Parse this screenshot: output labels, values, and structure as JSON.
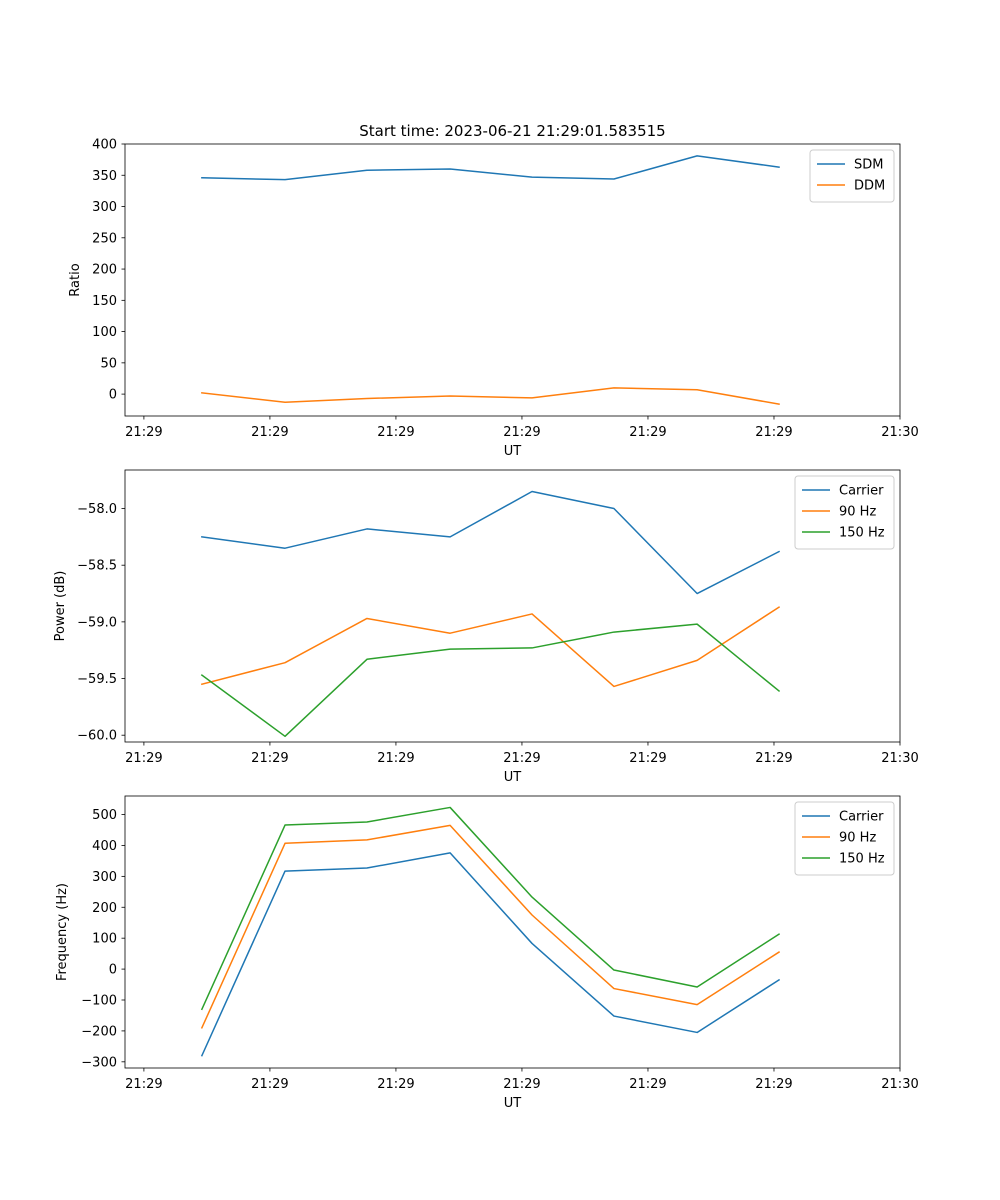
{
  "figure_title": "Start time: 2023-06-21 21:29:01.583515",
  "colors": {
    "blue": "#1f77b4",
    "orange": "#ff7f0e",
    "green": "#2ca02c"
  },
  "chart_data": [
    {
      "type": "line",
      "xlabel": "UT",
      "ylabel": "Ratio",
      "x_ticks": [
        "21:29",
        "21:29",
        "21:29",
        "21:29",
        "21:29",
        "21:29",
        "21:30"
      ],
      "x_tick_values": [
        0,
        1,
        2,
        3,
        4,
        5,
        6
      ],
      "xlim": [
        -0.15,
        6.0
      ],
      "ylim": [
        -35,
        400
      ],
      "y_ticks": [
        0,
        50,
        100,
        150,
        200,
        250,
        300,
        350,
        400
      ],
      "y_tick_labels": [
        "0",
        "50",
        "100",
        "150",
        "200",
        "250",
        "300",
        "350",
        "400"
      ],
      "legend": "top-right",
      "grid": false,
      "x": [
        0.46,
        1.12,
        1.77,
        2.43,
        3.08,
        3.73,
        4.39,
        5.04
      ],
      "series": [
        {
          "name": "SDM",
          "color": "#1f77b4",
          "values": [
            346,
            343,
            358,
            360,
            347,
            344,
            381,
            363
          ]
        },
        {
          "name": "DDM",
          "color": "#ff7f0e",
          "values": [
            2,
            -13,
            -7,
            -3,
            -6,
            10,
            7,
            -16
          ]
        }
      ]
    },
    {
      "type": "line",
      "xlabel": "UT",
      "ylabel": "Power (dB)",
      "x_ticks": [
        "21:29",
        "21:29",
        "21:29",
        "21:29",
        "21:29",
        "21:29",
        "21:30"
      ],
      "x_tick_values": [
        0,
        1,
        2,
        3,
        4,
        5,
        6
      ],
      "xlim": [
        -0.15,
        6.0
      ],
      "ylim": [
        -60.06,
        -57.66
      ],
      "y_ticks": [
        -60.0,
        -59.5,
        -59.0,
        -58.5,
        -58.0
      ],
      "y_tick_labels": [
        "−60.0",
        "−59.5",
        "−59.0",
        "−58.5",
        "−58.0"
      ],
      "legend": "top-right",
      "grid": false,
      "x": [
        0.46,
        1.12,
        1.77,
        2.43,
        3.08,
        3.73,
        4.39,
        5.04
      ],
      "series": [
        {
          "name": "Carrier",
          "color": "#1f77b4",
          "values": [
            -58.25,
            -58.35,
            -58.18,
            -58.25,
            -57.85,
            -58.0,
            -58.75,
            -58.38
          ]
        },
        {
          "name": "90 Hz",
          "color": "#ff7f0e",
          "values": [
            -59.55,
            -59.36,
            -58.97,
            -59.1,
            -58.93,
            -59.57,
            -59.34,
            -58.87
          ]
        },
        {
          "name": "150 Hz",
          "color": "#2ca02c",
          "values": [
            -59.47,
            -60.01,
            -59.33,
            -59.24,
            -59.23,
            -59.09,
            -59.02,
            -59.61
          ]
        }
      ]
    },
    {
      "type": "line",
      "xlabel": "UT",
      "ylabel": "Frequency (Hz)",
      "x_ticks": [
        "21:29",
        "21:29",
        "21:29",
        "21:29",
        "21:29",
        "21:29",
        "21:30"
      ],
      "x_tick_values": [
        0,
        1,
        2,
        3,
        4,
        5,
        6
      ],
      "xlim": [
        -0.15,
        6.0
      ],
      "ylim": [
        -320,
        560
      ],
      "y_ticks": [
        -300,
        -200,
        -100,
        0,
        100,
        200,
        300,
        400,
        500
      ],
      "y_tick_labels": [
        "−300",
        "−200",
        "−100",
        "0",
        "100",
        "200",
        "300",
        "400",
        "500"
      ],
      "legend": "top-right",
      "grid": false,
      "x": [
        0.46,
        1.12,
        1.77,
        2.43,
        3.08,
        3.73,
        4.39,
        5.04
      ],
      "series": [
        {
          "name": "Carrier",
          "color": "#1f77b4",
          "values": [
            -280,
            317,
            327,
            376,
            83,
            -152,
            -205,
            -35
          ]
        },
        {
          "name": "90 Hz",
          "color": "#ff7f0e",
          "values": [
            -190,
            407,
            418,
            465,
            175,
            -63,
            -115,
            55
          ]
        },
        {
          "name": "150 Hz",
          "color": "#2ca02c",
          "values": [
            -130,
            466,
            476,
            523,
            233,
            -3,
            -58,
            113
          ]
        }
      ]
    }
  ]
}
